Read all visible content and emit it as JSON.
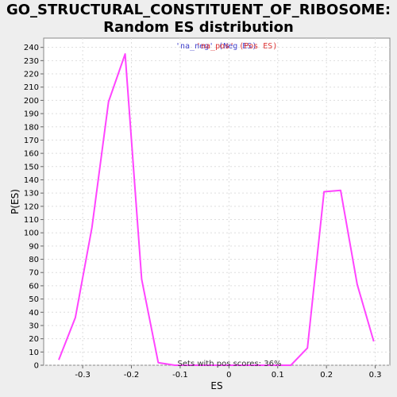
{
  "chart_data": {
    "type": "line",
    "title_line1": "GO_STRUCTURAL_CONSTITUENT_OF_RIBOSOME:",
    "title_line2": "Random ES distribution",
    "xlabel": "ES",
    "ylabel": "P(ES)",
    "xlim": [
      -0.38,
      0.33
    ],
    "ylim": [
      0,
      247
    ],
    "x_ticks": [
      -0.3,
      -0.2,
      -0.1,
      0,
      0.1,
      0.2,
      0.3
    ],
    "x_tick_labels": [
      "-0.3",
      "-0.2",
      "-0.1",
      "0",
      "0.1",
      "0.2",
      "0.3"
    ],
    "y_ticks": [
      0,
      10,
      20,
      30,
      40,
      50,
      60,
      70,
      80,
      90,
      100,
      110,
      120,
      130,
      140,
      150,
      160,
      170,
      180,
      190,
      200,
      210,
      220,
      230,
      240
    ],
    "grid": true,
    "legend": {
      "placement": "top-center",
      "neg_label": "'na_neg' (Neg ES)",
      "pos_label": "'na_pos' (Pos ES)",
      "neg_color": "#4444cc",
      "pos_color": "#dd3333"
    },
    "annotation": "Sets with pos scores: 36%",
    "series": [
      {
        "color": "#ff44ff",
        "x": [
          -0.349,
          -0.315,
          -0.281,
          -0.247,
          -0.213,
          -0.179,
          -0.145,
          -0.111,
          -0.077,
          -0.043,
          -0.009,
          0.025,
          0.059,
          0.093,
          0.127,
          0.161,
          0.195,
          0.229,
          0.263,
          0.297
        ],
        "y": [
          4,
          36,
          104,
          199,
          235,
          65,
          2,
          0,
          0,
          0,
          0,
          0,
          0,
          0,
          0,
          13,
          131,
          132,
          61,
          18
        ]
      }
    ]
  }
}
